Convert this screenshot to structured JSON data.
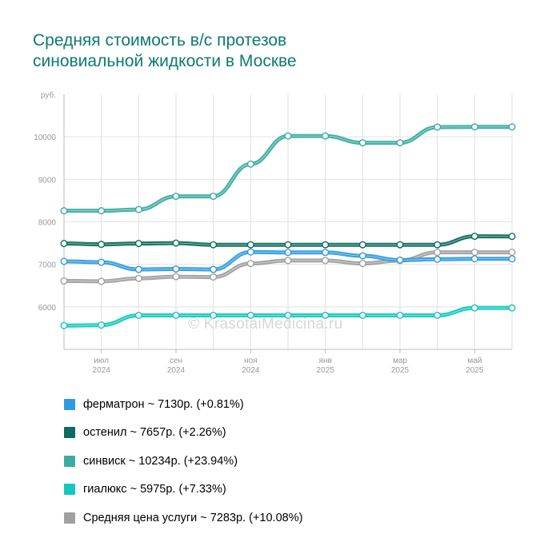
{
  "title_line1": "Средняя стоимость в/с протезов",
  "title_line2": "синовиальной жидкости в Москве",
  "watermark": "© KrasotaiMedicina.ru",
  "chart_data": {
    "type": "line",
    "y_unit": "руб.",
    "ylim": [
      5000,
      11000
    ],
    "y_ticks": [
      6000,
      7000,
      8000,
      9000,
      10000
    ],
    "grid": true,
    "legend_position": "bottom",
    "x_tick_labels": [
      {
        "month": "июл",
        "year": "2024"
      },
      {
        "month": "сен",
        "year": "2024"
      },
      {
        "month": "ноя",
        "year": "2024"
      },
      {
        "month": "янв",
        "year": "2025"
      },
      {
        "month": "мар",
        "year": "2025"
      },
      {
        "month": "май",
        "year": "2025"
      }
    ],
    "x": [
      "2024-05-15",
      "2024-06-15",
      "2024-07-15",
      "2024-08-15",
      "2024-09-15",
      "2024-10-15",
      "2024-11-15",
      "2024-12-15",
      "2025-01-15",
      "2025-02-15",
      "2025-03-15",
      "2025-04-15",
      "2025-05-15"
    ],
    "series": [
      {
        "name": "ферматрон",
        "color": "#2f9be0",
        "label": "ферматрон ~ 7130р. (+0.81%)",
        "values": [
          7070,
          7050,
          6880,
          6890,
          6880,
          7290,
          7280,
          7280,
          7200,
          7100,
          7120,
          7130,
          7130
        ]
      },
      {
        "name": "остенил",
        "color": "#0e6b5f",
        "label": "остенил ~ 7657р. (+2.26%)",
        "values": [
          7490,
          7470,
          7490,
          7500,
          7460,
          7460,
          7460,
          7460,
          7460,
          7460,
          7460,
          7660,
          7657
        ]
      },
      {
        "name": "синвиск",
        "color": "#3aada0",
        "label": "синвиск ~ 10234р. (+23.94%)",
        "values": [
          8260,
          8260,
          8290,
          8600,
          8600,
          9360,
          10020,
          10020,
          9860,
          9860,
          10230,
          10234,
          10234
        ]
      },
      {
        "name": "гиалюкс",
        "color": "#12c8c0",
        "label": "гиалюкс ~ 5975р. (+7.33%)",
        "values": [
          5560,
          5570,
          5800,
          5800,
          5800,
          5800,
          5800,
          5800,
          5800,
          5800,
          5800,
          5975,
          5975
        ]
      },
      {
        "name": "Средняя цена услуги",
        "color": "#a0a0a0",
        "label": "Средняя цена услуги ~ 7283р. (+10.08%)",
        "values": [
          6610,
          6600,
          6670,
          6710,
          6700,
          7020,
          7090,
          7090,
          7020,
          7090,
          7283,
          7283,
          7283
        ]
      }
    ]
  }
}
